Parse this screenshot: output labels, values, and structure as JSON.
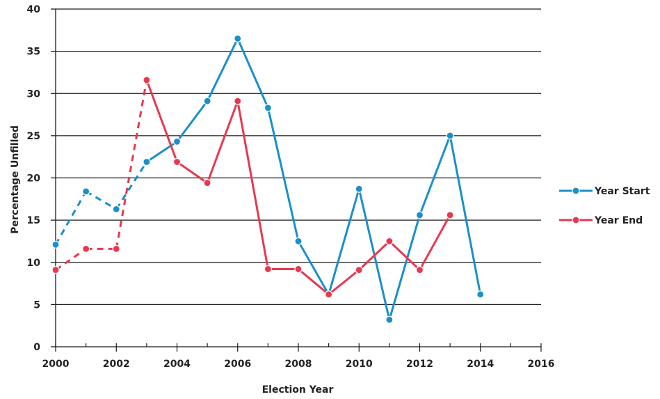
{
  "chart_data": {
    "type": "line",
    "title": "",
    "xlabel": "Election Year",
    "ylabel": "Percentage Unfilled",
    "xlim": [
      2000,
      2016
    ],
    "ylim": [
      0,
      40
    ],
    "x_ticks": [
      2000,
      2002,
      2004,
      2006,
      2008,
      2010,
      2012,
      2014,
      2016
    ],
    "y_ticks": [
      0,
      5,
      10,
      15,
      20,
      25,
      30,
      35,
      40
    ],
    "grid": "horizontal",
    "legend_position": "right",
    "series": [
      {
        "name": "Year Start",
        "color": "#1a8fc9",
        "dashed_through": 2003,
        "points": [
          [
            2000,
            12.1
          ],
          [
            2001,
            18.4
          ],
          [
            2002,
            16.3
          ],
          [
            2003,
            21.9
          ],
          [
            2004,
            24.3
          ],
          [
            2005,
            29.1
          ],
          [
            2006,
            36.5
          ],
          [
            2007,
            28.3
          ],
          [
            2008,
            12.5
          ],
          [
            2009,
            6.2
          ],
          [
            2010,
            18.7
          ],
          [
            2011,
            3.2
          ],
          [
            2012,
            15.6
          ],
          [
            2013,
            25.0
          ],
          [
            2014,
            6.2
          ]
        ]
      },
      {
        "name": "Year End",
        "color": "#e8384f",
        "dashed_through": 2003,
        "points": [
          [
            2000,
            9.1
          ],
          [
            2001,
            11.6
          ],
          [
            2002,
            11.6
          ],
          [
            2003,
            31.6
          ],
          [
            2004,
            21.9
          ],
          [
            2005,
            19.4
          ],
          [
            2006,
            29.1
          ],
          [
            2007,
            9.2
          ],
          [
            2008,
            9.2
          ],
          [
            2009,
            6.2
          ],
          [
            2010,
            9.1
          ],
          [
            2011,
            12.5
          ],
          [
            2012,
            9.1
          ],
          [
            2013,
            15.6
          ]
        ]
      }
    ]
  }
}
